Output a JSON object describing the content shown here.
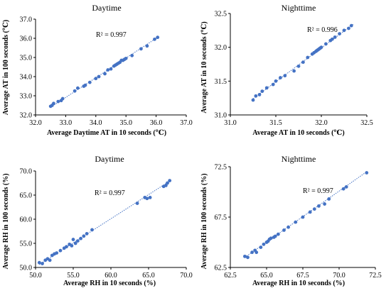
{
  "chart_data": [
    {
      "type": "scatter",
      "title": "Daytime",
      "xlabel": "Average Daytime AT in 10 seconds (℃)",
      "ylabel": "Average AT in 100 seconds (℃)",
      "xlim": [
        32.0,
        37.0
      ],
      "ylim": [
        32.0,
        37.0
      ],
      "xticks": [
        "32.0",
        "33.0",
        "34.0",
        "35.0",
        "36.0",
        "37.0"
      ],
      "yticks": [
        "32.0",
        "33.0",
        "34.0",
        "35.0",
        "36.0",
        "37.0"
      ],
      "r2_label": "R² = 0.997",
      "grid": false,
      "trendline": [
        [
          32.5,
          32.4
        ],
        [
          36.1,
          36.1
        ]
      ],
      "marker_color": "#4472C4",
      "x": [
        32.5,
        32.55,
        32.6,
        32.75,
        32.85,
        32.9,
        33.3,
        33.4,
        33.6,
        33.65,
        33.8,
        34.0,
        34.1,
        34.3,
        34.4,
        34.5,
        34.6,
        34.65,
        34.7,
        34.75,
        34.8,
        34.85,
        34.9,
        34.95,
        35.0,
        35.2,
        35.5,
        35.7,
        35.95,
        36.05
      ],
      "y": [
        32.45,
        32.5,
        32.6,
        32.7,
        32.75,
        32.85,
        33.25,
        33.4,
        33.5,
        33.55,
        33.7,
        33.9,
        34.0,
        34.15,
        34.35,
        34.4,
        34.55,
        34.6,
        34.65,
        34.7,
        34.75,
        34.85,
        34.85,
        34.9,
        34.95,
        35.1,
        35.45,
        35.6,
        35.95,
        36.05
      ]
    },
    {
      "type": "scatter",
      "title": "Nighttime",
      "xlabel": "Average AT in 10 seconds (℃)",
      "ylabel": "Average AT in 10 seconds (℃)",
      "xlim": [
        31.0,
        32.5
      ],
      "ylim": [
        31.0,
        32.5
      ],
      "xticks": [
        "31.0",
        "31.5",
        "32.0",
        "32.5"
      ],
      "yticks": [
        "31.0",
        "31.5",
        "32.0",
        "32.5"
      ],
      "r2_label": "R² = 0.996",
      "grid": false,
      "trendline": [
        [
          31.25,
          31.24
        ],
        [
          32.35,
          32.34
        ]
      ],
      "marker_color": "#4472C4",
      "x": [
        31.25,
        31.28,
        31.32,
        31.35,
        31.4,
        31.47,
        31.5,
        31.55,
        31.6,
        31.7,
        31.75,
        31.8,
        31.85,
        31.9,
        31.92,
        31.94,
        31.95,
        31.96,
        31.97,
        31.98,
        31.99,
        32.0,
        32.05,
        32.1,
        32.12,
        32.15,
        32.2,
        32.25,
        32.3,
        32.33
      ],
      "y": [
        31.22,
        31.28,
        31.3,
        31.35,
        31.4,
        31.45,
        31.5,
        31.55,
        31.58,
        31.65,
        31.72,
        31.78,
        31.85,
        31.9,
        31.92,
        31.94,
        31.95,
        31.96,
        31.97,
        31.98,
        31.99,
        32.0,
        32.05,
        32.1,
        32.12,
        32.15,
        32.2,
        32.25,
        32.28,
        32.32
      ]
    },
    {
      "type": "scatter",
      "title": "Daytime",
      "xlabel": "Average RH in 10 seconds (%)",
      "ylabel": "Average RH in 100 seconds (%)",
      "xlim": [
        50.0,
        70.0
      ],
      "ylim": [
        50.0,
        70.0
      ],
      "xticks": [
        "50.0",
        "55.0",
        "60.0",
        "65.0",
        "70.0"
      ],
      "yticks": [
        "50.0",
        "55.0",
        "60.0",
        "65.0",
        "70.0"
      ],
      "r2_label": "R² = 0.997",
      "grid": false,
      "trendline": [
        [
          50.5,
          50.6
        ],
        [
          67.8,
          67.9
        ]
      ],
      "marker_color": "#4472C4",
      "x": [
        50.5,
        50.9,
        51.3,
        51.6,
        51.9,
        52.2,
        52.5,
        52.8,
        53.3,
        53.8,
        54.1,
        54.5,
        54.8,
        55.0,
        55.3,
        55.6,
        56.0,
        56.4,
        56.8,
        57.5,
        63.5,
        64.5,
        64.8,
        65.2,
        67.0,
        67.3,
        67.5,
        67.8
      ],
      "y": [
        51.0,
        50.8,
        51.5,
        51.8,
        51.5,
        52.5,
        52.8,
        53.0,
        53.5,
        54.0,
        54.3,
        54.8,
        54.5,
        55.8,
        55.0,
        55.5,
        56.0,
        56.5,
        57.0,
        57.8,
        63.3,
        64.5,
        64.3,
        64.5,
        66.8,
        67.0,
        67.5,
        68.0
      ]
    },
    {
      "type": "scatter",
      "title": "Nighttime",
      "xlabel": "Average RH in 10 seconds (%)",
      "ylabel": "Average RH in 100 seconds (%)",
      "xlim": [
        62.5,
        72.5
      ],
      "ylim": [
        62.5,
        72.5
      ],
      "xticks": [
        "62.5",
        "65.0",
        "67.5",
        "70.0",
        "72.5"
      ],
      "yticks": [
        "62.5",
        "67.5",
        "72.5"
      ],
      "r2_label": "R² = 0.997",
      "grid": false,
      "trendline": [
        [
          63.5,
          63.5
        ],
        [
          71.9,
          72.0
        ]
      ],
      "marker_color": "#4472C4",
      "x": [
        63.5,
        63.7,
        64.0,
        64.2,
        64.3,
        64.6,
        64.8,
        65.0,
        65.1,
        65.2,
        65.3,
        65.5,
        65.6,
        65.8,
        66.2,
        66.5,
        67.0,
        67.5,
        68.0,
        68.3,
        68.6,
        69.0,
        69.3,
        70.3,
        70.5,
        71.9
      ],
      "y": [
        63.6,
        63.5,
        64.0,
        64.2,
        64.0,
        64.5,
        64.8,
        65.0,
        65.1,
        65.3,
        65.4,
        65.5,
        65.6,
        65.8,
        66.2,
        66.5,
        67.0,
        67.5,
        68.0,
        68.3,
        68.6,
        68.8,
        69.3,
        70.3,
        70.5,
        71.9
      ]
    }
  ]
}
